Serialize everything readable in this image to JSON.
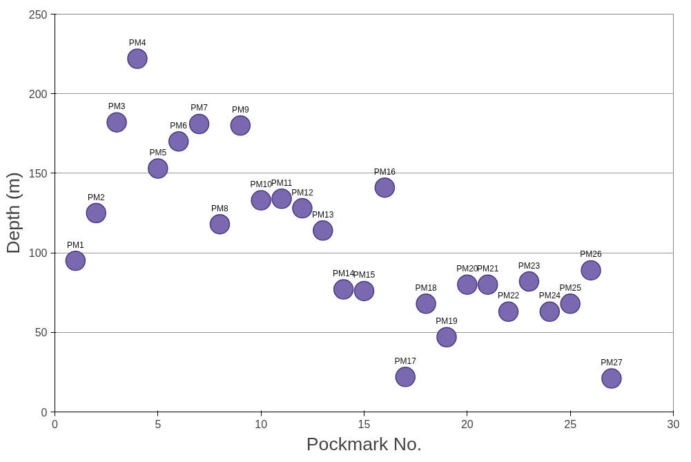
{
  "chart_data": {
    "type": "scatter",
    "xlabel": "Pockmark No.",
    "ylabel": "Depth (m)",
    "x": [
      1,
      2,
      3,
      4,
      5,
      6,
      7,
      8,
      9,
      10,
      11,
      12,
      13,
      14,
      15,
      16,
      17,
      18,
      19,
      20,
      21,
      22,
      23,
      24,
      25,
      26,
      27
    ],
    "series": [
      {
        "color": "#7a68b0",
        "values": [
          95,
          125,
          182,
          222,
          153,
          170,
          181,
          118,
          180,
          133,
          134,
          128,
          114,
          77,
          76,
          141,
          22,
          68,
          47,
          80,
          80,
          63,
          82,
          63,
          68,
          89,
          21
        ]
      }
    ],
    "xlim": [
      0,
      30
    ],
    "ylim": [
      0,
      250
    ],
    "xticks": [
      0,
      5,
      10,
      15,
      20,
      25,
      30
    ],
    "yticks": [
      0,
      50,
      100,
      150,
      200,
      250
    ],
    "grid": "y",
    "marker": "circle",
    "annotations": [
      {
        "text": "PM1",
        "x": 1,
        "y": 95
      },
      {
        "text": "PM2",
        "x": 2,
        "y": 125
      },
      {
        "text": "PM3",
        "x": 3,
        "y": 182
      },
      {
        "text": "PM4",
        "x": 4,
        "y": 222
      },
      {
        "text": "PM5",
        "x": 5,
        "y": 153
      },
      {
        "text": "PM6",
        "x": 6,
        "y": 170
      },
      {
        "text": "PM7",
        "x": 7,
        "y": 181
      },
      {
        "text": "PM8",
        "x": 8,
        "y": 118
      },
      {
        "text": "PM9",
        "x": 9,
        "y": 180
      },
      {
        "text": "PM10",
        "x": 10,
        "y": 133
      },
      {
        "text": "PM11",
        "x": 11,
        "y": 134
      },
      {
        "text": "PM12",
        "x": 12,
        "y": 128
      },
      {
        "text": "PM13",
        "x": 13,
        "y": 114
      },
      {
        "text": "PM14",
        "x": 14,
        "y": 77
      },
      {
        "text": "PM15",
        "x": 15,
        "y": 76
      },
      {
        "text": "PM16",
        "x": 16,
        "y": 141
      },
      {
        "text": "PM17",
        "x": 17,
        "y": 22
      },
      {
        "text": "PM18",
        "x": 18,
        "y": 68
      },
      {
        "text": "PM19",
        "x": 19,
        "y": 47
      },
      {
        "text": "PM20",
        "x": 20,
        "y": 80
      },
      {
        "text": "PM21",
        "x": 21,
        "y": 80
      },
      {
        "text": "PM22",
        "x": 22,
        "y": 63
      },
      {
        "text": "PM23",
        "x": 23,
        "y": 82
      },
      {
        "text": "PM24",
        "x": 24,
        "y": 63
      },
      {
        "text": "PM25",
        "x": 25,
        "y": 68
      },
      {
        "text": "PM26",
        "x": 26,
        "y": 89
      },
      {
        "text": "PM27",
        "x": 27,
        "y": 21
      }
    ]
  }
}
